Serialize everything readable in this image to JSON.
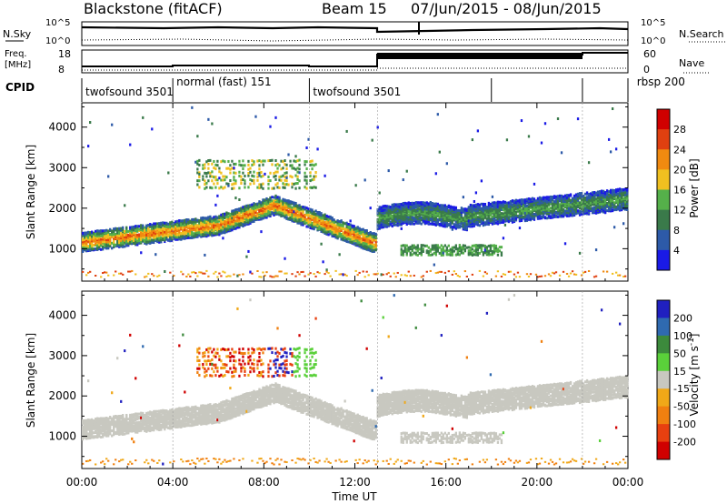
{
  "header": {
    "station": "Blackstone (fitACF)",
    "beam": "Beam 15",
    "date_range": "07/Jun/2015 - 08/Jun/2015"
  },
  "noise_panel": {
    "left_label": "N.Sky",
    "right_label": "N.Search",
    "left_ticks": [
      "10^5",
      "10^0"
    ],
    "right_ticks": [
      "10^5",
      "10^0"
    ]
  },
  "freq_panel": {
    "left_label_1": "Freq.",
    "left_label_2": "[MHz]",
    "right_label": "Nave",
    "left_ticks": [
      "18",
      "8"
    ],
    "right_ticks": [
      "60",
      "0"
    ]
  },
  "cpid_panel": {
    "label": "CPID",
    "programs": [
      {
        "name": "twofsound 3501",
        "start_h": 0,
        "end_h": 4
      },
      {
        "name": "normal (fast) 151",
        "start_h": 4,
        "end_h": 10
      },
      {
        "name": "twofsound 3501",
        "start_h": 10,
        "end_h": 18
      },
      {
        "name": "rbsp 200",
        "start_h": 18,
        "end_h": 22
      }
    ]
  },
  "chart_data": [
    {
      "type": "heatmap",
      "name": "power",
      "ylabel": "Slant Range [km]",
      "yticks": [
        1000,
        2000,
        3000,
        4000
      ],
      "ylim": [
        200,
        4600
      ],
      "xlim_hours": [
        0,
        24
      ],
      "colorbar": {
        "label": "Power [dB]",
        "ticks": [
          4,
          8,
          12,
          16,
          20,
          24,
          28
        ],
        "colors": [
          "#1a1ae6",
          "#2d5aa8",
          "#3a7a4a",
          "#55b04a",
          "#f0c020",
          "#f08a10",
          "#e04010",
          "#d00000"
        ]
      },
      "approx_backscatter_bands": [
        {
          "t_hours": [
            0,
            13
          ],
          "range_km": [
            1000,
            2000
          ],
          "power_db": [
            12,
            28
          ]
        },
        {
          "t_hours": [
            13,
            24
          ],
          "range_km": [
            1400,
            2400
          ],
          "power_db": [
            8,
            16
          ]
        },
        {
          "t_hours": [
            14,
            18
          ],
          "range_km": [
            800,
            1100
          ],
          "power_db": [
            8,
            14
          ]
        },
        {
          "t_hours": [
            5,
            10
          ],
          "range_km": [
            2400,
            3300
          ],
          "power_db": [
            8,
            16
          ]
        }
      ]
    },
    {
      "type": "heatmap",
      "name": "velocity",
      "ylabel": "Slant Range [km]",
      "xlabel": "Time UT",
      "yticks": [
        1000,
        2000,
        3000,
        4000
      ],
      "ylim": [
        200,
        4600
      ],
      "xticks": [
        "00:00",
        "04:00",
        "08:00",
        "12:00",
        "16:00",
        "20:00",
        "00:00"
      ],
      "xlim_hours": [
        0,
        24
      ],
      "colorbar": {
        "label": "Velocity [m s^-1]",
        "ticks": [
          "200",
          "100",
          "50",
          "15",
          "-15",
          "-50",
          "-100",
          "-200"
        ],
        "colors": [
          "#2020c0",
          "#2f6ab0",
          "#3c8a3c",
          "#5ad03a",
          "#c8c8c0",
          "#f0a818",
          "#f08010",
          "#e84010",
          "#d00000"
        ]
      },
      "approx_backscatter_bands": [
        {
          "t_hours": [
            0,
            13
          ],
          "range_km": [
            1000,
            2000
          ],
          "velocity": "ground scatter (~0)"
        },
        {
          "t_hours": [
            13,
            24
          ],
          "range_km": [
            1400,
            2400
          ],
          "velocity": "ground scatter (~0)"
        },
        {
          "t_hours": [
            5,
            8
          ],
          "range_km": [
            2500,
            3200
          ],
          "velocity": "-200 to -50"
        },
        {
          "t_hours": [
            9,
            10
          ],
          "range_km": [
            2600,
            3000
          ],
          "velocity": "50 to 100"
        }
      ]
    }
  ]
}
